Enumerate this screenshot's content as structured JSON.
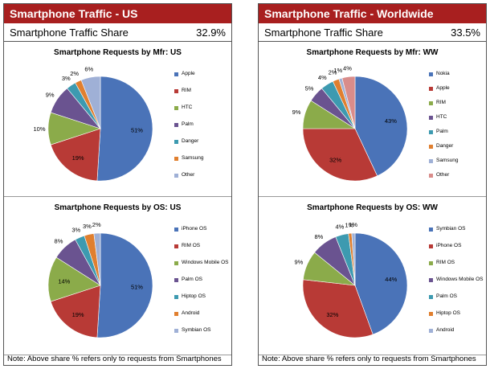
{
  "panels": [
    {
      "header": "Smartphone Traffic - US",
      "share_label": "Smartphone Traffic Share",
      "share_value": "32.9%",
      "note": "Note: Above share % refers only to requests from Smartphones"
    },
    {
      "header": "Smartphone Traffic - Worldwide",
      "share_label": "Smartphone Traffic Share",
      "share_value": "33.5%",
      "note": "Note: Above share % refers only to requests from Smartphones"
    }
  ],
  "chart_data": [
    {
      "type": "pie",
      "title": "Smartphone Requests by Mfr: US",
      "categories": [
        "Apple",
        "RIM",
        "HTC",
        "Palm",
        "Danger",
        "Samsung",
        "Other"
      ],
      "values": [
        51,
        19,
        10,
        9,
        3,
        2,
        6
      ],
      "labels": [
        "51%",
        "19%",
        "10%",
        "9%",
        "3%",
        "2%",
        "6%"
      ],
      "colors": [
        "#4a73b8",
        "#b83a36",
        "#8bab4a",
        "#6a5390",
        "#3d9ab0",
        "#e07f2f",
        "#9fb0d6"
      ]
    },
    {
      "type": "pie",
      "title": "Smartphone Requests by Mfr: WW",
      "categories": [
        "Nokia",
        "Apple",
        "RIM",
        "HTC",
        "Palm",
        "Danger",
        "Samsung",
        "Other"
      ],
      "values": [
        43,
        32,
        9,
        5,
        4,
        2,
        1,
        4
      ],
      "labels": [
        "43%",
        "32%",
        "9%",
        "5%",
        "4%",
        "2%",
        "1%",
        "4%"
      ],
      "colors": [
        "#4a73b8",
        "#b83a36",
        "#8bab4a",
        "#6a5390",
        "#3d9ab0",
        "#e07f2f",
        "#9fb0d6",
        "#d98c8a"
      ]
    },
    {
      "type": "pie",
      "title": "Smartphone Requests by OS: US",
      "categories": [
        "iPhone OS",
        "RIM OS",
        "Windows Mobile OS",
        "Palm OS",
        "Hiptop OS",
        "Android",
        "Symbian OS"
      ],
      "values": [
        51,
        19,
        14,
        8,
        3,
        3,
        2
      ],
      "labels": [
        "51%",
        "19%",
        "14%",
        "8%",
        "3%",
        "3%",
        "2%"
      ],
      "colors": [
        "#4a73b8",
        "#b83a36",
        "#8bab4a",
        "#6a5390",
        "#3d9ab0",
        "#e07f2f",
        "#9fb0d6"
      ]
    },
    {
      "type": "pie",
      "title": "Smartphone Requests by OS: WW",
      "categories": [
        "Symbian OS",
        "iPhone OS",
        "RIM OS",
        "Windows Mobile OS",
        "Palm OS",
        "Hiptop OS",
        "Android"
      ],
      "values": [
        44,
        32,
        9,
        8,
        4,
        1,
        1
      ],
      "labels": [
        "44%",
        "32%",
        "9%",
        "8%",
        "4%",
        "1%",
        "1%"
      ],
      "colors": [
        "#4a73b8",
        "#b83a36",
        "#8bab4a",
        "#6a5390",
        "#3d9ab0",
        "#e07f2f",
        "#9fb0d6"
      ]
    }
  ]
}
